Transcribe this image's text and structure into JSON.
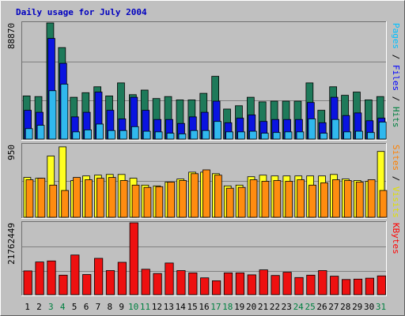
{
  "chart_data": {
    "type": "bar",
    "title": "Daily usage for July 2004",
    "categories": [
      "1",
      "2",
      "3",
      "4",
      "5",
      "6",
      "7",
      "8",
      "9",
      "10",
      "11",
      "12",
      "13",
      "14",
      "15",
      "16",
      "17",
      "18",
      "19",
      "20",
      "21",
      "22",
      "23",
      "24",
      "25",
      "26",
      "27",
      "28",
      "29",
      "30",
      "31"
    ],
    "weekend_days": [
      "3",
      "4",
      "10",
      "11",
      "17",
      "18",
      "24",
      "25",
      "31"
    ],
    "panels": [
      {
        "id": "hits",
        "max_label": "88870",
        "ylim": [
          0,
          88870
        ],
        "right_label": [
          {
            "text": "Pages",
            "color": "#00c0ff"
          },
          {
            "text": " / ",
            "color": "#000000"
          },
          {
            "text": "Files",
            "color": "#0000ff"
          },
          {
            "text": " / ",
            "color": "#000000"
          },
          {
            "text": "Hits",
            "color": "#008040"
          }
        ],
        "series": [
          {
            "name": "Hits",
            "color": "#1e7a5a",
            "values": [
              33000,
              32500,
              88870,
              70000,
              32000,
              35500,
              40000,
              33000,
              43000,
              34000,
              37500,
              31000,
              32500,
              30000,
              30000,
              35000,
              48000,
              23000,
              25500,
              32000,
              28500,
              29000,
              29000,
              29000,
              43000,
              22000,
              40000,
              33500,
              36000,
              30000,
              32500
            ]
          },
          {
            "name": "Files",
            "color": "#0a14e0",
            "values": [
              22000,
              20500,
              77000,
              58000,
              17000,
              20500,
              36000,
              22000,
              15500,
              32000,
              22000,
              15000,
              15000,
              12000,
              17000,
              20500,
              29000,
              12500,
              16000,
              18500,
              13500,
              15000,
              15000,
              15000,
              28000,
              12500,
              32000,
              18000,
              20000,
              14000,
              16000
            ]
          },
          {
            "name": "Pages",
            "color": "#30b8ee",
            "values": [
              8000,
              10500,
              37000,
              42000,
              5500,
              7000,
              11500,
              6500,
              6500,
              9500,
              6000,
              5500,
              4500,
              4000,
              6500,
              6500,
              13500,
              5500,
              5500,
              6000,
              4500,
              5000,
              5500,
              5500,
              15500,
              4500,
              15000,
              5500,
              6000,
              5000,
              13000
            ]
          }
        ]
      },
      {
        "id": "visits",
        "max_label": "950",
        "ylim": [
          0,
          950
        ],
        "right_label": [
          {
            "text": "Sites",
            "color": "#ff8000"
          },
          {
            "text": " / ",
            "color": "#000000"
          },
          {
            "text": "Visits",
            "color": "#e0e000"
          }
        ],
        "series": [
          {
            "name": "Visits",
            "color": "#ffff20",
            "values": [
              520,
              510,
              800,
              920,
              480,
              540,
              550,
              560,
              560,
              510,
              420,
              410,
              460,
              500,
              590,
              590,
              570,
              410,
              420,
              530,
              550,
              540,
              540,
              540,
              540,
              540,
              560,
              500,
              480,
              470,
              860
            ]
          },
          {
            "name": "Sites",
            "color": "#ff8c10",
            "values": [
              490,
              510,
              420,
              350,
              520,
              490,
              510,
              520,
              480,
              420,
              390,
              400,
              460,
              480,
              570,
              620,
              550,
              380,
              390,
              490,
              470,
              480,
              470,
              490,
              420,
              450,
              490,
              480,
              460,
              490,
              350
            ]
          }
        ]
      },
      {
        "id": "kbytes",
        "max_label": "21762449",
        "ylim": [
          0,
          21762449
        ],
        "right_label": [
          {
            "text": "KBytes",
            "color": "#ff0000"
          }
        ],
        "series": [
          {
            "name": "KBytes",
            "color": "#ee1010",
            "values": [
              7200000,
              9900000,
              10200000,
              5900000,
              12000000,
              6100000,
              11000000,
              7300000,
              9800000,
              21762449,
              7700000,
              6400000,
              9600000,
              7300000,
              6600000,
              5100000,
              4200000,
              6600000,
              6600000,
              6000000,
              7500000,
              5800000,
              6800000,
              5200000,
              5900000,
              7300000,
              5600000,
              4600000,
              4700000,
              5000000,
              5700000
            ]
          }
        ]
      }
    ]
  }
}
